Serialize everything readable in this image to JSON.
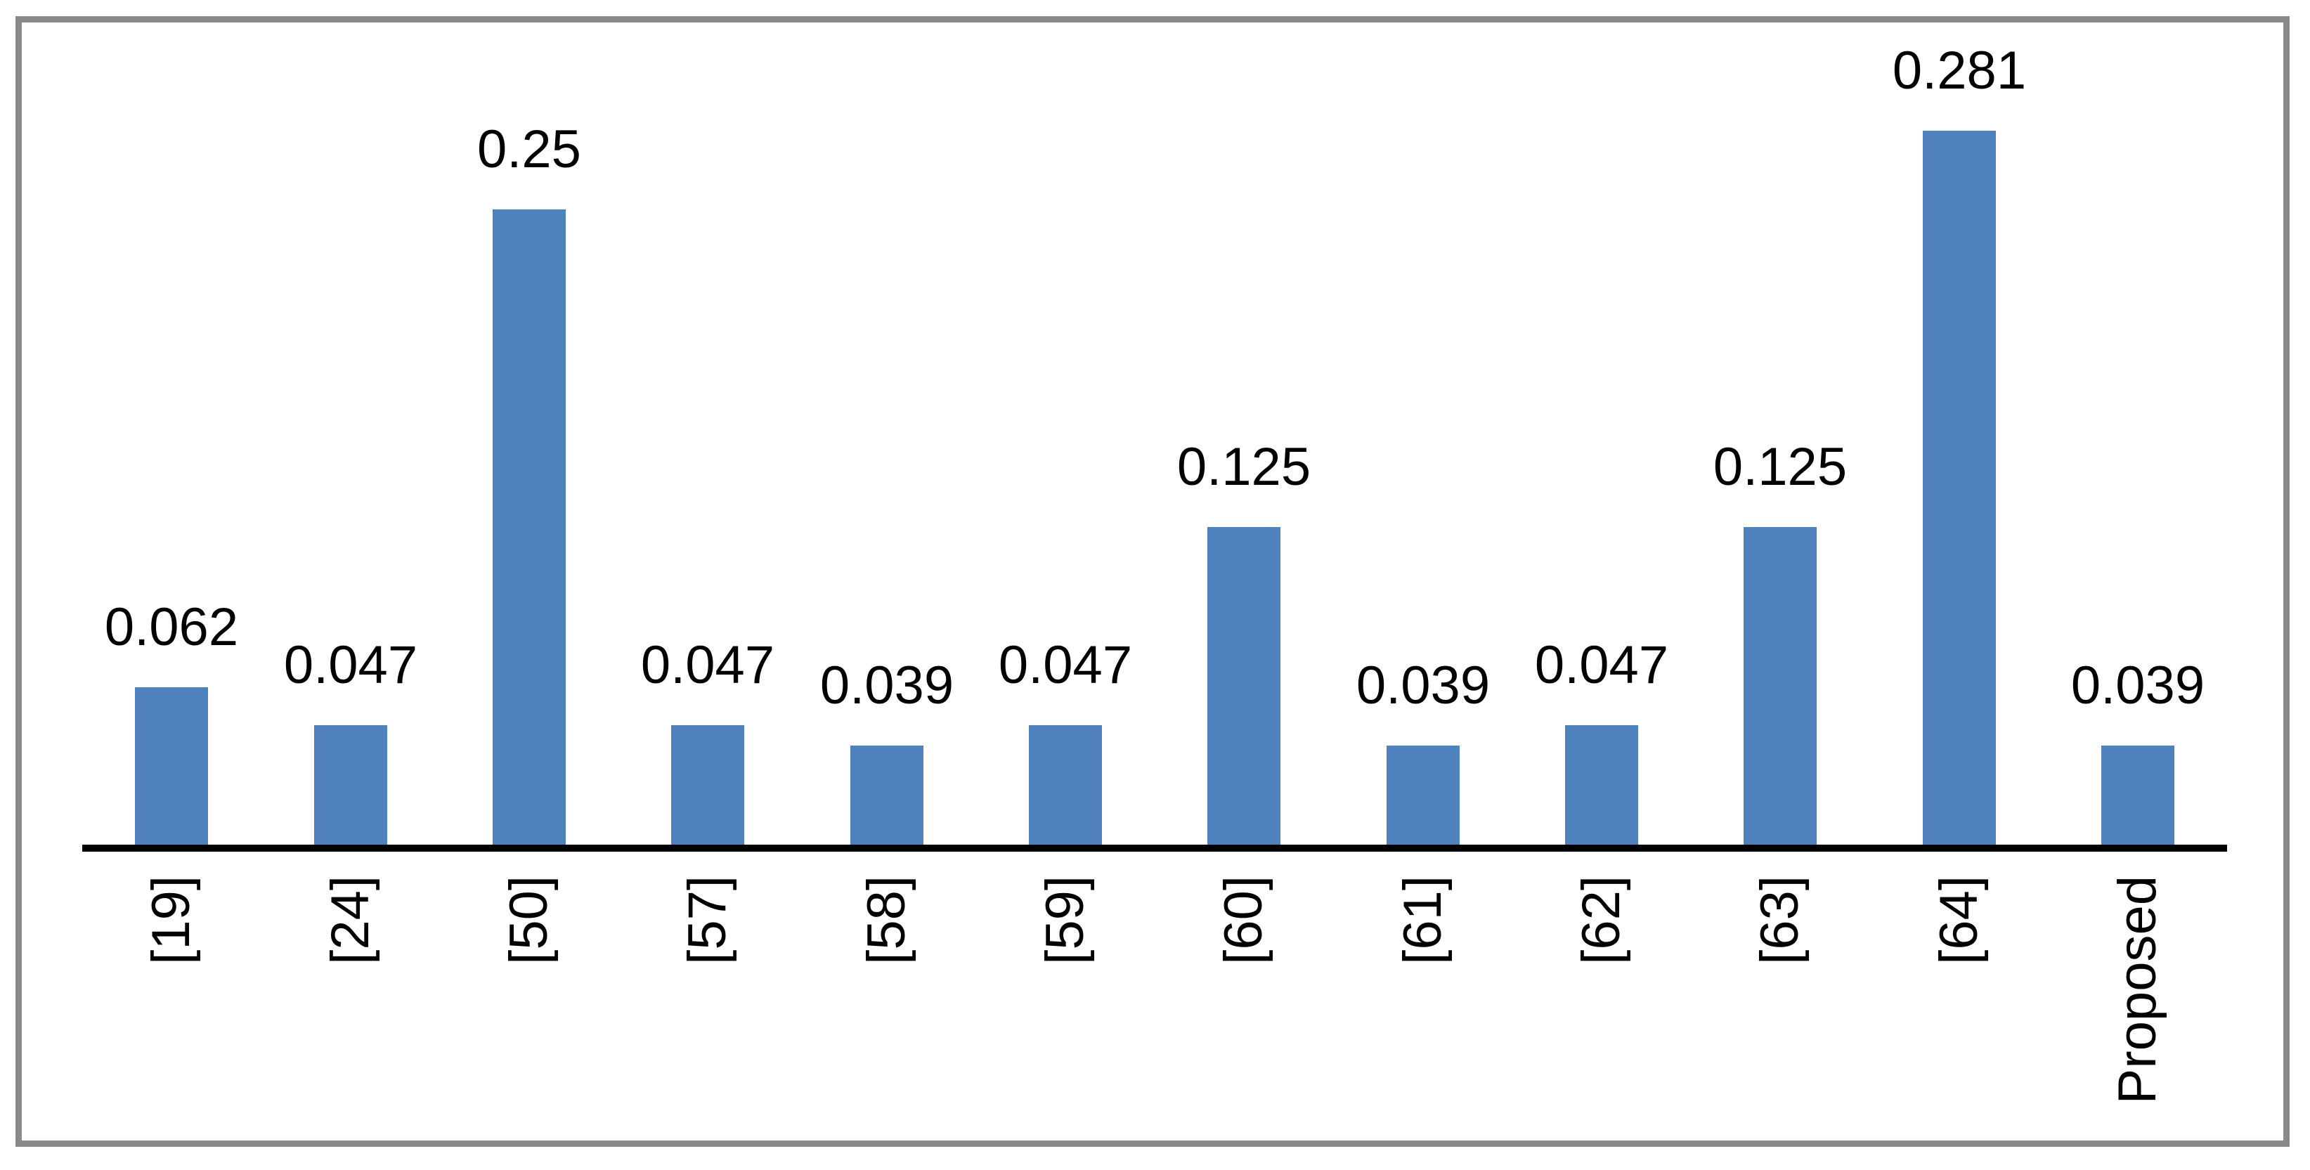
{
  "chart_data": {
    "type": "bar",
    "categories": [
      "[19]",
      "[24]",
      "[50]",
      "[57]",
      "[58]",
      "[59]",
      "[60]",
      "[61]",
      "[62]",
      "[63]",
      "[64]",
      "Proposed"
    ],
    "values": [
      0.062,
      0.047,
      0.25,
      0.047,
      0.039,
      0.047,
      0.125,
      0.039,
      0.047,
      0.125,
      0.281,
      0.039
    ],
    "data_labels": [
      "0.062",
      "0.047",
      "0.25",
      "0.047",
      "0.039",
      "0.047",
      "0.125",
      "0.039",
      "0.047",
      "0.125",
      "0.281",
      "0.039"
    ],
    "title": "",
    "xlabel": "",
    "ylabel": "",
    "ylim": [
      0,
      0.3
    ],
    "bar_color": "#4F81BD",
    "axis_color": "#000000",
    "frame_color": "#8A8A8A",
    "label_color": "#000000",
    "grid": false,
    "legend_position": "none",
    "x_tick_rotation_deg": 90,
    "data_label_position": "above-bar"
  }
}
